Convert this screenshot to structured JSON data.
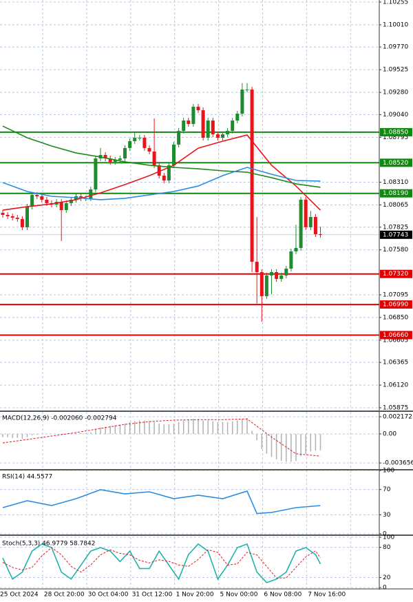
{
  "chart_data": [
    {
      "type": "candlestick",
      "categories": [
        "25 Oct 2024",
        null,
        null,
        null,
        null,
        null,
        null,
        null,
        null,
        "28 Oct 20:00",
        null,
        null,
        null,
        null,
        null,
        null,
        null,
        null,
        "30 Oct 04:00",
        null,
        null,
        null,
        null,
        null,
        null,
        null,
        null,
        "31 Oct 12:00",
        null,
        null,
        null,
        null,
        null,
        null,
        null,
        null,
        "1 Nov 20:00",
        null,
        null,
        null,
        null,
        null,
        null,
        null,
        null,
        "5 Nov 00:00",
        null,
        null,
        null,
        null,
        null,
        null,
        null,
        null,
        "6 Nov 08:00",
        null,
        null,
        null,
        null,
        null,
        null,
        null,
        null,
        "7 Nov 16:00",
        null,
        null
      ],
      "open": [
        1.0798,
        1.07957,
        1.07942,
        1.07927,
        1.07913,
        1.07824,
        1.08046,
        1.08173,
        1.08158,
        1.08121,
        1.08084,
        1.08069,
        1.08098,
        1.08009,
        1.08084,
        1.08121,
        1.08158,
        1.08136,
        1.08136,
        1.08232,
        1.08567,
        1.08604,
        1.08567,
        1.0853,
        1.08552,
        1.08567,
        1.08679,
        1.08753,
        1.0879,
        1.0879,
        1.08679,
        1.08641,
        1.08492,
        1.08381,
        1.08329,
        1.08492,
        1.08716,
        1.08864,
        1.08976,
        1.08939,
        1.09125,
        1.09087,
        1.0879,
        1.08976,
        1.08827,
        1.0879,
        1.08827,
        1.08864,
        1.08976,
        1.0905,
        1.0931,
        1.0931,
        1.07451,
        1.0734,
        1.0708,
        1.07303,
        1.0734,
        1.07266,
        1.07303,
        1.07377,
        1.07563,
        1.076,
        1.08121,
        1.07824,
        1.07935,
        1.07749
      ],
      "high": [
        1.0801,
        1.07987,
        1.07972,
        1.07957,
        1.07943,
        1.08076,
        1.08203,
        1.08203,
        1.08188,
        1.08151,
        1.08114,
        1.08128,
        1.08128,
        1.08114,
        1.08151,
        1.08188,
        1.08188,
        1.08166,
        1.08262,
        1.08597,
        1.0868,
        1.08634,
        1.08597,
        1.08582,
        1.08597,
        1.08709,
        1.08783,
        1.0885,
        1.0882,
        1.0882,
        1.08709,
        1.09,
        1.08522,
        1.08411,
        1.08522,
        1.08746,
        1.08894,
        1.09006,
        1.09006,
        1.09155,
        1.09155,
        1.09117,
        1.09006,
        1.09006,
        1.08857,
        1.08857,
        1.08894,
        1.09006,
        1.0908,
        1.0938,
        1.0938,
        1.0934,
        1.07935,
        1.0737,
        1.07333,
        1.0737,
        1.0737,
        1.07333,
        1.07407,
        1.07593,
        1.0785,
        1.08151,
        1.08151,
        1.08,
        1.07965,
        1.0783
      ],
      "low": [
        1.07927,
        1.07912,
        1.07897,
        1.07883,
        1.07794,
        1.07794,
        1.08016,
        1.08128,
        1.08091,
        1.08054,
        1.08039,
        1.08039,
        1.07675,
        1.07979,
        1.08054,
        1.08091,
        1.08106,
        1.08106,
        1.08106,
        1.08202,
        1.08537,
        1.08537,
        1.085,
        1.085,
        1.08522,
        1.08537,
        1.08649,
        1.08723,
        1.0876,
        1.08649,
        1.08611,
        1.08462,
        1.08351,
        1.08299,
        1.08299,
        1.08462,
        1.08686,
        1.08834,
        1.08909,
        1.08909,
        1.09057,
        1.0876,
        1.0876,
        1.08797,
        1.0876,
        1.0876,
        1.08797,
        1.08834,
        1.08946,
        1.0902,
        1.0928,
        1.0734,
        1.07,
        1.06804,
        1.0705,
        1.071,
        1.07236,
        1.07236,
        1.07273,
        1.07347,
        1.07533,
        1.0757,
        1.07794,
        1.07794,
        1.07719,
        1.07713
      ],
      "close": [
        1.07957,
        1.07942,
        1.07927,
        1.07913,
        1.07824,
        1.08046,
        1.08173,
        1.08158,
        1.08121,
        1.08084,
        1.08069,
        1.08098,
        1.08009,
        1.08084,
        1.08121,
        1.08158,
        1.08136,
        1.08136,
        1.08232,
        1.08567,
        1.08604,
        1.08567,
        1.0853,
        1.08552,
        1.08567,
        1.08679,
        1.08753,
        1.0879,
        1.0879,
        1.08679,
        1.08641,
        1.08492,
        1.08381,
        1.08329,
        1.08492,
        1.08716,
        1.08864,
        1.08976,
        1.08939,
        1.09125,
        1.09087,
        1.0879,
        1.08976,
        1.08827,
        1.0879,
        1.08827,
        1.08864,
        1.08976,
        1.0905,
        1.0931,
        1.0931,
        1.07451,
        1.0734,
        1.0708,
        1.07303,
        1.0734,
        1.07266,
        1.07303,
        1.07377,
        1.07563,
        1.076,
        1.08121,
        1.07824,
        1.07935,
        1.07749,
        1.07743
      ],
      "up_color": "#1e8c2e",
      "down_color": "#e8141c",
      "series": [
        {
          "color": "#e8141c",
          "x": [
            0,
            5,
            10,
            15,
            20,
            25,
            30,
            35,
            40,
            45,
            50,
            55,
            60,
            65
          ],
          "values": [
            1.08009,
            1.08046,
            1.08076,
            1.08121,
            1.08195,
            1.08284,
            1.08381,
            1.08493,
            1.08678,
            1.08753,
            1.0882,
            1.08493,
            1.08269,
            1.08009
          ]
        },
        {
          "color": "#1a8a1a",
          "x": [
            0,
            5,
            10,
            15,
            20,
            25,
            30,
            35,
            40,
            45,
            50,
            55,
            60,
            65
          ],
          "values": [
            1.08916,
            1.0879,
            1.08701,
            1.08626,
            1.08582,
            1.0853,
            1.08493,
            1.0847,
            1.08455,
            1.08433,
            1.08418,
            1.08359,
            1.08292,
            1.08255
          ]
        },
        {
          "color": "#2a8be0",
          "x": [
            0,
            5,
            10,
            15,
            20,
            25,
            30,
            35,
            40,
            45,
            50,
            55,
            60,
            65
          ],
          "values": [
            1.08307,
            1.0821,
            1.08158,
            1.08143,
            1.08121,
            1.08136,
            1.08173,
            1.0821,
            1.08269,
            1.08381,
            1.0847,
            1.08396,
            1.08329,
            1.08322
          ]
        }
      ],
      "levels": [
        {
          "value": 1.0885,
          "label": "1.08850",
          "color": "#0f8a0f"
        },
        {
          "value": 1.0852,
          "label": "1.08520",
          "color": "#0f8a0f"
        },
        {
          "value": 1.0819,
          "label": "1.08190",
          "color": "#0f8a0f"
        },
        {
          "value": 1.0732,
          "label": "1.07320",
          "color": "#e00000"
        },
        {
          "value": 1.0699,
          "label": "1.06990",
          "color": "#e00000"
        },
        {
          "value": 1.0666,
          "label": "1.06660",
          "color": "#e00000"
        }
      ],
      "last_price": 1.07743,
      "ylim": [
        1.05853,
        1.10277
      ],
      "yticks": [
        1.10255,
        {
          "value": 1.1001,
          "label": "1.10010"
        },
        {
          "value": 1.0977,
          "label": "1.09770"
        },
        1.09525,
        {
          "value": 1.0928,
          "label": "1.09280"
        },
        {
          "value": 1.0904,
          "label": "1.09040"
        },
        1.08795,
        {
          "value": 1.0831,
          "label": "1.08310"
        },
        1.08065,
        1.07825,
        {
          "value": 1.0758,
          "label": "1.07580"
        },
        1.07095,
        {
          "value": 1.0685,
          "label": "1.06850"
        },
        1.06605,
        1.06365,
        {
          "value": 1.0612,
          "label": "1.06120"
        },
        1.05875
      ],
      "grid": true
    },
    {
      "type": "macd",
      "title": "MACD(12,26,9) -0.002060 -0.002794",
      "histogram": {
        "color": "#b0b0b0",
        "values": [
          -0.0004,
          -0.0004,
          -0.0005,
          -0.0005,
          -0.0006,
          -0.0004,
          -0.0002,
          -0.0001,
          0,
          0,
          0,
          0,
          -0.0001,
          0,
          0,
          0.0001,
          0.0001,
          0.0001,
          0.0002,
          0.0006,
          0.0008,
          0.0009,
          0.001,
          0.0011,
          0.0012,
          0.0013,
          0.0015,
          0.0016,
          0.0017,
          0.0017,
          0.0016,
          0.0015,
          0.0013,
          0.0012,
          0.0012,
          0.0013,
          0.0015,
          0.0017,
          0.0018,
          0.0019,
          0.0019,
          0.0017,
          0.0017,
          0.0016,
          0.0015,
          0.0015,
          0.0015,
          0.0016,
          0.0017,
          0.0019,
          0.002,
          0.0004,
          -0.0008,
          -0.0019,
          -0.0025,
          -0.0029,
          -0.0032,
          -0.0034,
          -0.0035,
          -0.0035,
          -0.0034,
          -0.0028,
          -0.0025,
          -0.0022,
          -0.0021,
          -0.00206
        ]
      },
      "series": [
        {
          "color": "#e8141c",
          "dashed": true,
          "x": [
            0,
            5,
            10,
            15,
            20,
            25,
            30,
            35,
            40,
            45,
            50,
            55,
            60,
            65
          ],
          "values": [
            -0.00113,
            -0.0007,
            -0.00026,
            0.00017,
            0.0007,
            0.0012,
            0.00156,
            0.00174,
            0.0018,
            0.0018,
            0.0019,
            -0.0004,
            -0.0025,
            -0.002794
          ]
        }
      ],
      "ylim": [
        -0.00434,
        0.00278
      ],
      "yticks": [
        0.002172,
        {
          "value": 0,
          "label": "0.00"
        },
        -0.003656
      ]
    },
    {
      "type": "line",
      "title": "RSI(14) 44.5577",
      "series": [
        {
          "color": "#2a8be0",
          "x": [
            0,
            5,
            10,
            15,
            20,
            25,
            30,
            35,
            40,
            45,
            50,
            52,
            55,
            60,
            65
          ],
          "values": [
            41.3,
            52.2,
            44.6,
            55.4,
            69.6,
            63.0,
            66.3,
            55.4,
            60.9,
            55.4,
            67.4,
            32,
            33.7,
            41.3,
            44.5577
          ]
        }
      ],
      "ylim": [
        0,
        100
      ],
      "yticks": [
        100,
        70,
        30,
        0
      ],
      "grid": true
    },
    {
      "type": "line",
      "title": "Stoch(5,3,3) 46.9779 58.7842",
      "series": [
        {
          "color": "#20b2aa",
          "x": [
            0,
            2,
            4,
            6,
            8,
            10,
            12,
            14,
            16,
            18,
            20,
            22,
            24,
            26,
            28,
            30,
            32,
            34,
            36,
            38,
            40,
            42,
            44,
            46,
            48,
            50,
            52,
            54,
            56,
            58,
            60,
            62,
            64,
            65
          ],
          "values": [
            58.6,
            16.7,
            30.7,
            72.5,
            86.5,
            79.5,
            30.7,
            16.7,
            44.6,
            72.5,
            79.5,
            72.5,
            51.6,
            72.5,
            37.7,
            37.7,
            72.5,
            44.6,
            16.7,
            65.6,
            86.5,
            72.5,
            16.7,
            44.6,
            79.5,
            86.5,
            30.7,
            9.8,
            16.7,
            30.7,
            72.5,
            79.5,
            65.6,
            46.9779
          ]
        },
        {
          "color": "#e8141c",
          "dashed": true,
          "x": [
            0,
            2,
            4,
            6,
            8,
            10,
            12,
            14,
            16,
            18,
            20,
            22,
            24,
            26,
            28,
            30,
            32,
            34,
            36,
            38,
            40,
            42,
            44,
            46,
            48,
            50,
            52,
            54,
            56,
            58,
            60,
            62,
            64,
            65
          ],
          "values": [
            50,
            40,
            35,
            40,
            63,
            79.5,
            65,
            42,
            30.7,
            45,
            65,
            75,
            68,
            65,
            54,
            49,
            55,
            52,
            45,
            42,
            56,
            75,
            70,
            44.6,
            47,
            70,
            65,
            42,
            19,
            19,
            40,
            61,
            73,
            58.7842
          ]
        }
      ],
      "ylim": [
        0,
        100
      ],
      "yticks": [
        100,
        80,
        20,
        0
      ],
      "grid": true
    }
  ]
}
